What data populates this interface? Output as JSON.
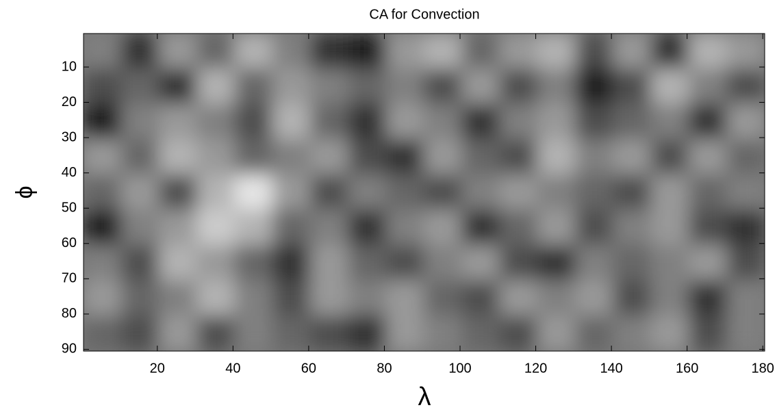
{
  "chart_data": {
    "type": "heatmap",
    "title": "CA for Convection",
    "x_label": "λ",
    "y_label": "ϕ",
    "colormap": "gray",
    "x": [
      5.5,
      15.5,
      25.5,
      35.5,
      45.5,
      55.5,
      65.5,
      75.5,
      85.5,
      95.5,
      105.5,
      115.5,
      125.5,
      135.5,
      145.5,
      155.5,
      165.5,
      175.5
    ],
    "y": [
      5.5,
      15.5,
      25.5,
      35.5,
      45.5,
      55.5,
      65.5,
      75.5,
      85.5
    ],
    "values": [
      [
        0.5,
        0.2,
        0.6,
        0.4,
        0.7,
        0.5,
        0.2,
        0.1,
        0.6,
        0.7,
        0.4,
        0.6,
        0.7,
        0.3,
        0.6,
        0.2,
        0.7,
        0.6
      ],
      [
        0.3,
        0.4,
        0.2,
        0.7,
        0.4,
        0.6,
        0.5,
        0.4,
        0.5,
        0.3,
        0.6,
        0.3,
        0.5,
        0.1,
        0.3,
        0.7,
        0.5,
        0.3
      ],
      [
        0.1,
        0.5,
        0.6,
        0.5,
        0.3,
        0.7,
        0.4,
        0.2,
        0.6,
        0.5,
        0.2,
        0.5,
        0.6,
        0.3,
        0.4,
        0.5,
        0.2,
        0.6
      ],
      [
        0.6,
        0.4,
        0.7,
        0.6,
        0.4,
        0.5,
        0.6,
        0.3,
        0.2,
        0.6,
        0.4,
        0.3,
        0.7,
        0.5,
        0.6,
        0.3,
        0.6,
        0.4
      ],
      [
        0.4,
        0.6,
        0.3,
        0.7,
        0.9,
        0.6,
        0.3,
        0.5,
        0.4,
        0.3,
        0.5,
        0.6,
        0.5,
        0.4,
        0.3,
        0.6,
        0.4,
        0.5
      ],
      [
        0.1,
        0.5,
        0.6,
        0.8,
        0.7,
        0.4,
        0.5,
        0.2,
        0.5,
        0.6,
        0.2,
        0.4,
        0.6,
        0.3,
        0.5,
        0.6,
        0.3,
        0.2
      ],
      [
        0.5,
        0.3,
        0.7,
        0.6,
        0.4,
        0.2,
        0.6,
        0.4,
        0.3,
        0.5,
        0.6,
        0.3,
        0.2,
        0.5,
        0.4,
        0.5,
        0.6,
        0.3
      ],
      [
        0.6,
        0.4,
        0.5,
        0.7,
        0.5,
        0.3,
        0.6,
        0.5,
        0.6,
        0.4,
        0.3,
        0.6,
        0.5,
        0.6,
        0.3,
        0.5,
        0.2,
        0.5
      ],
      [
        0.4,
        0.3,
        0.6,
        0.3,
        0.5,
        0.4,
        0.3,
        0.2,
        0.6,
        0.5,
        0.4,
        0.3,
        0.6,
        0.4,
        0.5,
        0.6,
        0.3,
        0.5
      ]
    ],
    "xlim": [
      0.5,
      180.5
    ],
    "ylim": [
      0.5,
      90.5
    ],
    "xticks": [
      20,
      40,
      60,
      80,
      100,
      120,
      140,
      160,
      180
    ],
    "yticks": [
      10,
      20,
      30,
      40,
      50,
      60,
      70,
      80,
      90
    ]
  }
}
